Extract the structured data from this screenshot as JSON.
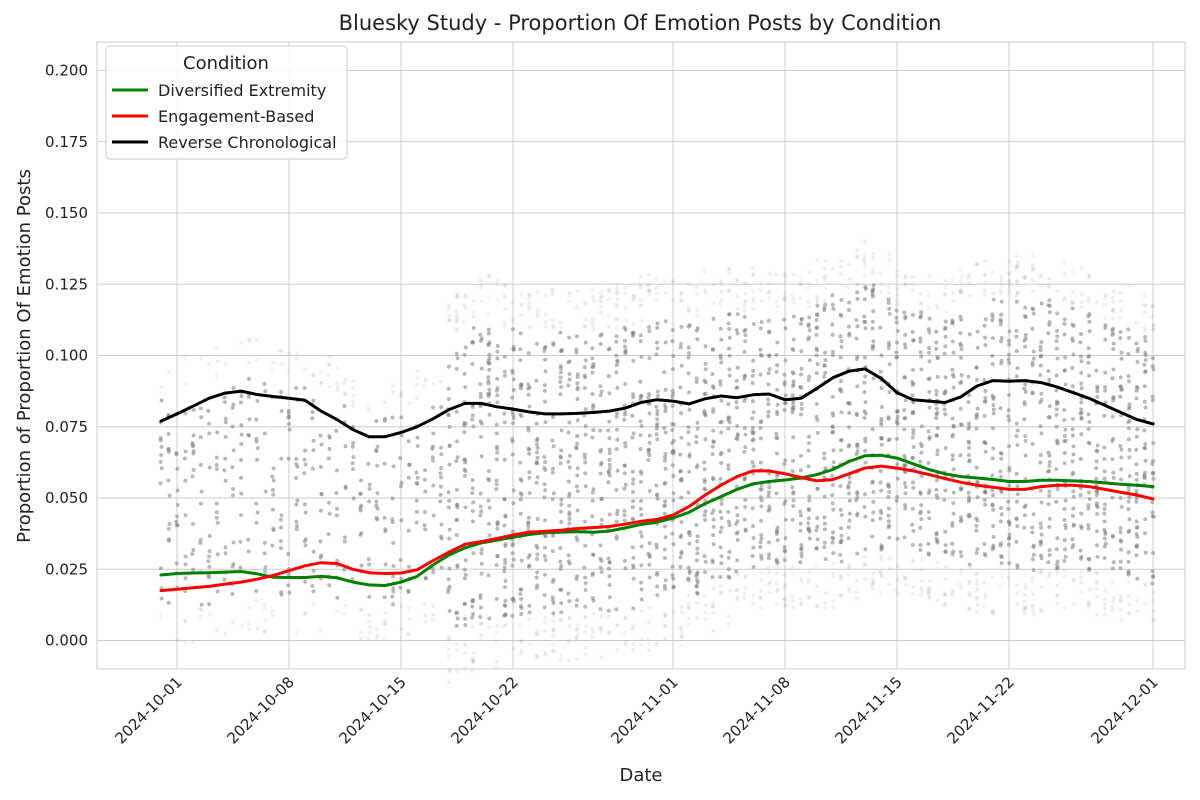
{
  "chart_data": {
    "type": "line",
    "title": "Bluesky Study - Proportion Of Emotion Posts by Condition",
    "xlabel": "Date",
    "ylabel": "Proportion of Proportion Of Emotion Posts",
    "ylim": [
      -0.01,
      0.21
    ],
    "xlim": [
      "2024-09-26",
      "2024-12-03"
    ],
    "y_ticks": [
      "0.000",
      "0.025",
      "0.050",
      "0.075",
      "0.100",
      "0.125",
      "0.150",
      "0.175",
      "0.200"
    ],
    "x_ticks": [
      "2024-10-01",
      "2024-10-08",
      "2024-10-15",
      "2024-10-22",
      "2024-11-01",
      "2024-11-08",
      "2024-11-15",
      "2024-11-22",
      "2024-12-01"
    ],
    "grid": true,
    "legend": {
      "title": "Condition",
      "position": "top-left"
    },
    "series": [
      {
        "name": "Diversified Extremity",
        "color": "#008000",
        "x": [
          "2024-09-30",
          "2024-10-01",
          "2024-10-02",
          "2024-10-03",
          "2024-10-04",
          "2024-10-05",
          "2024-10-06",
          "2024-10-07",
          "2024-10-08",
          "2024-10-09",
          "2024-10-10",
          "2024-10-11",
          "2024-10-12",
          "2024-10-13",
          "2024-10-14",
          "2024-10-15",
          "2024-10-16",
          "2024-10-17",
          "2024-10-18",
          "2024-10-19",
          "2024-10-20",
          "2024-10-21",
          "2024-10-22",
          "2024-10-23",
          "2024-10-24",
          "2024-10-25",
          "2024-10-26",
          "2024-10-27",
          "2024-10-28",
          "2024-10-29",
          "2024-10-30",
          "2024-10-31",
          "2024-11-01",
          "2024-11-02",
          "2024-11-03",
          "2024-11-04",
          "2024-11-05",
          "2024-11-06",
          "2024-11-07",
          "2024-11-08",
          "2024-11-09",
          "2024-11-10",
          "2024-11-11",
          "2024-11-12",
          "2024-11-13",
          "2024-11-14",
          "2024-11-15",
          "2024-11-16",
          "2024-11-17",
          "2024-11-18",
          "2024-11-19",
          "2024-11-20",
          "2024-11-21",
          "2024-11-22",
          "2024-11-23",
          "2024-11-24",
          "2024-11-25",
          "2024-11-26",
          "2024-11-27",
          "2024-11-28",
          "2024-11-29",
          "2024-11-30",
          "2024-12-01"
        ],
        "y": [
          0.023,
          0.0235,
          0.0237,
          0.0238,
          0.024,
          0.0242,
          0.0234,
          0.0222,
          0.0221,
          0.0221,
          0.0225,
          0.022,
          0.0205,
          0.0195,
          0.0193,
          0.0205,
          0.0225,
          0.0265,
          0.03,
          0.0325,
          0.0342,
          0.0352,
          0.0362,
          0.0372,
          0.0378,
          0.038,
          0.0382,
          0.038,
          0.0384,
          0.0395,
          0.0407,
          0.0415,
          0.043,
          0.045,
          0.048,
          0.0505,
          0.053,
          0.055,
          0.0558,
          0.0563,
          0.057,
          0.0582,
          0.06,
          0.0628,
          0.0648,
          0.065,
          0.064,
          0.062,
          0.06,
          0.0585,
          0.0575,
          0.057,
          0.0565,
          0.0558,
          0.0558,
          0.0562,
          0.0562,
          0.056,
          0.0558,
          0.0553,
          0.0548,
          0.0545,
          0.054
        ]
      },
      {
        "name": "Engagement-Based",
        "color": "#ff0000",
        "x": [
          "2024-09-30",
          "2024-10-01",
          "2024-10-02",
          "2024-10-03",
          "2024-10-04",
          "2024-10-05",
          "2024-10-06",
          "2024-10-07",
          "2024-10-08",
          "2024-10-09",
          "2024-10-10",
          "2024-10-11",
          "2024-10-12",
          "2024-10-13",
          "2024-10-14",
          "2024-10-15",
          "2024-10-16",
          "2024-10-17",
          "2024-10-18",
          "2024-10-19",
          "2024-10-20",
          "2024-10-21",
          "2024-10-22",
          "2024-10-23",
          "2024-10-24",
          "2024-10-25",
          "2024-10-26",
          "2024-10-27",
          "2024-10-28",
          "2024-10-29",
          "2024-10-30",
          "2024-10-31",
          "2024-11-01",
          "2024-11-02",
          "2024-11-03",
          "2024-11-04",
          "2024-11-05",
          "2024-11-06",
          "2024-11-07",
          "2024-11-08",
          "2024-11-09",
          "2024-11-10",
          "2024-11-11",
          "2024-11-12",
          "2024-11-13",
          "2024-11-14",
          "2024-11-15",
          "2024-11-16",
          "2024-11-17",
          "2024-11-18",
          "2024-11-19",
          "2024-11-20",
          "2024-11-21",
          "2024-11-22",
          "2024-11-23",
          "2024-11-24",
          "2024-11-25",
          "2024-11-26",
          "2024-11-27",
          "2024-11-28",
          "2024-11-29",
          "2024-11-30",
          "2024-12-01"
        ],
        "y": [
          0.0175,
          0.018,
          0.0185,
          0.019,
          0.0198,
          0.0205,
          0.0215,
          0.0228,
          0.0245,
          0.0262,
          0.0273,
          0.027,
          0.025,
          0.0238,
          0.0235,
          0.0237,
          0.0248,
          0.028,
          0.031,
          0.0338,
          0.0347,
          0.0358,
          0.037,
          0.038,
          0.0383,
          0.0387,
          0.0393,
          0.0396,
          0.04,
          0.0408,
          0.0418,
          0.0425,
          0.044,
          0.047,
          0.051,
          0.0545,
          0.0575,
          0.0595,
          0.0595,
          0.0585,
          0.0572,
          0.056,
          0.0565,
          0.0585,
          0.0605,
          0.0612,
          0.0605,
          0.0595,
          0.0582,
          0.0568,
          0.0555,
          0.0545,
          0.0538,
          0.053,
          0.053,
          0.054,
          0.0545,
          0.0545,
          0.054,
          0.053,
          0.052,
          0.051,
          0.0497
        ]
      },
      {
        "name": "Reverse Chronological",
        "color": "#000000",
        "x": [
          "2024-09-30",
          "2024-10-01",
          "2024-10-02",
          "2024-10-03",
          "2024-10-04",
          "2024-10-05",
          "2024-10-06",
          "2024-10-07",
          "2024-10-08",
          "2024-10-09",
          "2024-10-10",
          "2024-10-11",
          "2024-10-12",
          "2024-10-13",
          "2024-10-14",
          "2024-10-15",
          "2024-10-16",
          "2024-10-17",
          "2024-10-18",
          "2024-10-19",
          "2024-10-20",
          "2024-10-21",
          "2024-10-22",
          "2024-10-23",
          "2024-10-24",
          "2024-10-25",
          "2024-10-26",
          "2024-10-27",
          "2024-10-28",
          "2024-10-29",
          "2024-10-30",
          "2024-10-31",
          "2024-11-01",
          "2024-11-02",
          "2024-11-03",
          "2024-11-04",
          "2024-11-05",
          "2024-11-06",
          "2024-11-07",
          "2024-11-08",
          "2024-11-09",
          "2024-11-10",
          "2024-11-11",
          "2024-11-12",
          "2024-11-13",
          "2024-11-14",
          "2024-11-15",
          "2024-11-16",
          "2024-11-17",
          "2024-11-18",
          "2024-11-19",
          "2024-11-20",
          "2024-11-21",
          "2024-11-22",
          "2024-11-23",
          "2024-11-24",
          "2024-11-25",
          "2024-11-26",
          "2024-11-27",
          "2024-11-28",
          "2024-11-29",
          "2024-11-30",
          "2024-12-01"
        ],
        "y": [
          0.077,
          0.0795,
          0.0822,
          0.085,
          0.0868,
          0.0875,
          0.0863,
          0.0856,
          0.085,
          0.0843,
          0.0805,
          0.0775,
          0.074,
          0.0715,
          0.0715,
          0.073,
          0.075,
          0.0778,
          0.081,
          0.0832,
          0.0832,
          0.082,
          0.0812,
          0.0802,
          0.0795,
          0.0795,
          0.0797,
          0.08,
          0.0805,
          0.0815,
          0.0835,
          0.0845,
          0.084,
          0.083,
          0.0848,
          0.0858,
          0.0852,
          0.0862,
          0.0865,
          0.0845,
          0.085,
          0.0885,
          0.0922,
          0.0945,
          0.0953,
          0.092,
          0.087,
          0.0845,
          0.084,
          0.0835,
          0.0855,
          0.0893,
          0.0912,
          0.091,
          0.0912,
          0.0905,
          0.089,
          0.087,
          0.085,
          0.0825,
          0.08,
          0.0775,
          0.076
        ]
      }
    ],
    "scatter_color": "#808080"
  }
}
